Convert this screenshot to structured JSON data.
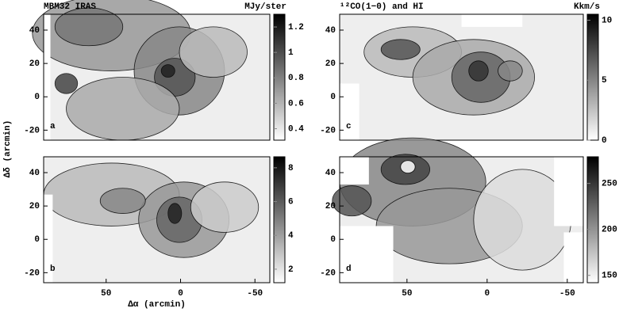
{
  "chart_data": [
    {
      "type": "contour",
      "title": "MBM32  IRAS",
      "colorbar_label": "MJy/ster",
      "panel_label": "a",
      "xlim": [
        92,
        -60
      ],
      "ylim": [
        -26,
        49.5
      ],
      "yticks": [
        -20,
        0,
        20,
        40
      ],
      "clim": [
        0.31,
        1.3
      ],
      "cticks": [
        0.4,
        0.6,
        0.8,
        1,
        1.2
      ]
    },
    {
      "type": "contour",
      "panel_label": "b",
      "xlabel": "Δα (arcmin)",
      "ylabel": "Δδ (arcmin)",
      "xlim": [
        92,
        -60
      ],
      "ylim": [
        -26,
        49.5
      ],
      "xticks": [
        50,
        0,
        -50
      ],
      "yticks": [
        -20,
        0,
        20,
        40
      ],
      "clim": [
        1.2,
        8.65
      ],
      "cticks": [
        2,
        4,
        6,
        8
      ]
    },
    {
      "type": "contour",
      "title": "¹²CO(1−0) and HI",
      "colorbar_label": "Kkm/s",
      "panel_label": "c",
      "xlim": [
        92,
        -60
      ],
      "ylim": [
        -26,
        49.5
      ],
      "yticks": [
        -20,
        0,
        20,
        40
      ],
      "clim": [
        0,
        10.5
      ],
      "cticks": [
        0,
        5,
        10
      ]
    },
    {
      "type": "contour",
      "panel_label": "d",
      "xlim": [
        92,
        -60
      ],
      "ylim": [
        -26,
        49.5
      ],
      "xticks": [
        50,
        0,
        -50
      ],
      "yticks": [
        -20,
        0,
        20,
        40
      ],
      "clim": [
        142,
        279
      ],
      "cticks": [
        150,
        200,
        250
      ]
    }
  ]
}
